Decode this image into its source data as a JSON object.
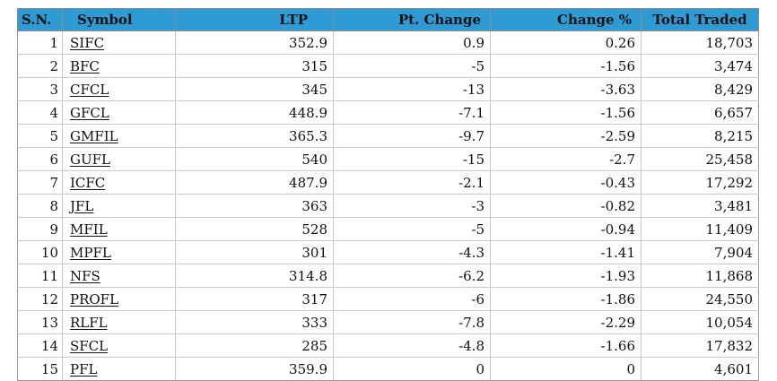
{
  "table": {
    "headers": {
      "sn": "S.N.",
      "symbol": "Symbol",
      "ltp": "LTP",
      "pt_change": "Pt. Change",
      "change_pct": "Change %",
      "total_traded": "Total Traded"
    },
    "header_color": "#2f9bd4",
    "rows": [
      {
        "sn": "1",
        "symbol": "SIFC",
        "ltp": "352.9",
        "pt_change": "0.9",
        "change_pct": "0.26",
        "total_traded": "18,703"
      },
      {
        "sn": "2",
        "symbol": "BFC",
        "ltp": "315",
        "pt_change": "-5",
        "change_pct": "-1.56",
        "total_traded": "3,474"
      },
      {
        "sn": "3",
        "symbol": "CFCL",
        "ltp": "345",
        "pt_change": "-13",
        "change_pct": "-3.63",
        "total_traded": "8,429"
      },
      {
        "sn": "4",
        "symbol": "GFCL",
        "ltp": "448.9",
        "pt_change": "-7.1",
        "change_pct": "-1.56",
        "total_traded": "6,657"
      },
      {
        "sn": "5",
        "symbol": "GMFIL",
        "ltp": "365.3",
        "pt_change": "-9.7",
        "change_pct": "-2.59",
        "total_traded": "8,215"
      },
      {
        "sn": "6",
        "symbol": "GUFL",
        "ltp": "540",
        "pt_change": "-15",
        "change_pct": "-2.7",
        "total_traded": "25,458"
      },
      {
        "sn": "7",
        "symbol": "ICFC",
        "ltp": "487.9",
        "pt_change": "-2.1",
        "change_pct": "-0.43",
        "total_traded": "17,292"
      },
      {
        "sn": "8",
        "symbol": "JFL",
        "ltp": "363",
        "pt_change": "-3",
        "change_pct": "-0.82",
        "total_traded": "3,481"
      },
      {
        "sn": "9",
        "symbol": "MFIL",
        "ltp": "528",
        "pt_change": "-5",
        "change_pct": "-0.94",
        "total_traded": "11,409"
      },
      {
        "sn": "10",
        "symbol": "MPFL",
        "ltp": "301",
        "pt_change": "-4.3",
        "change_pct": "-1.41",
        "total_traded": "7,904"
      },
      {
        "sn": "11",
        "symbol": "NFS",
        "ltp": "314.8",
        "pt_change": "-6.2",
        "change_pct": "-1.93",
        "total_traded": "11,868"
      },
      {
        "sn": "12",
        "symbol": "PROFL",
        "ltp": "317",
        "pt_change": "-6",
        "change_pct": "-1.86",
        "total_traded": "24,550"
      },
      {
        "sn": "13",
        "symbol": "RLFL",
        "ltp": "333",
        "pt_change": "-7.8",
        "change_pct": "-2.29",
        "total_traded": "10,054"
      },
      {
        "sn": "14",
        "symbol": "SFCL",
        "ltp": "285",
        "pt_change": "-4.8",
        "change_pct": "-1.66",
        "total_traded": "17,832"
      },
      {
        "sn": "15",
        "symbol": "PFL",
        "ltp": "359.9",
        "pt_change": "0",
        "change_pct": "0",
        "total_traded": "4,601"
      }
    ]
  }
}
